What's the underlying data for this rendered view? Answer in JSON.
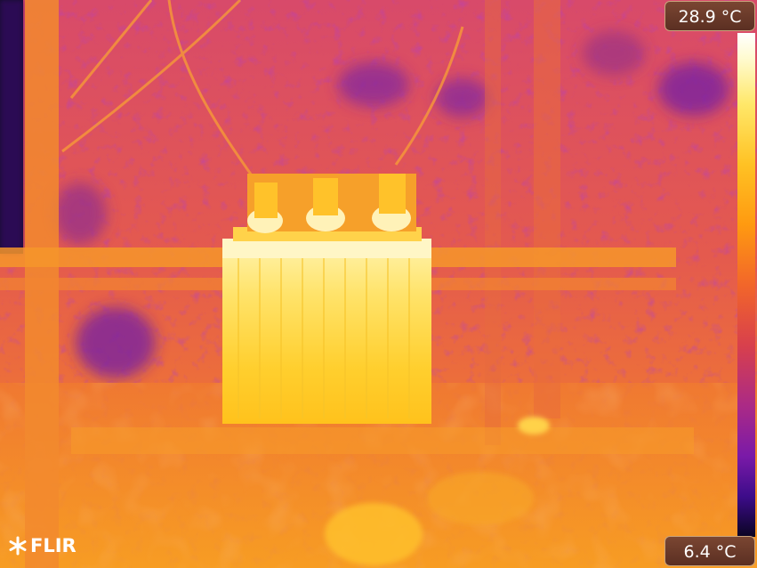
{
  "image": {
    "subject": "thermal-camera-view",
    "palette": [
      "#ffffff",
      "#ffe86a",
      "#ffc224",
      "#ff9a10",
      "#f2662a",
      "#d8404c",
      "#ab2a86",
      "#7a1aa8",
      "#0a0422"
    ]
  },
  "scale": {
    "max_label": "28.9 °C",
    "min_label": "6.4 °C"
  },
  "brand": {
    "logo_text": "FLIR",
    "logo_icon": "flir-snowflake-icon"
  }
}
